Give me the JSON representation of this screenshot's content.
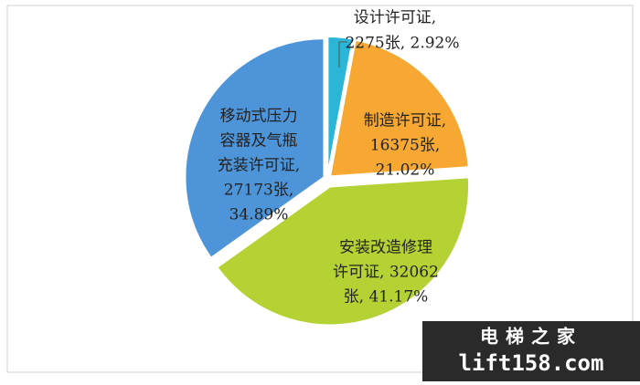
{
  "chart_data": {
    "type": "pie",
    "categories": [
      "设计许可证",
      "制造许可证",
      "安装改造修理许可证",
      "移动式压力容器及气瓶充装许可证"
    ],
    "values": [
      2.92,
      21.02,
      41.17,
      34.89
    ],
    "colors": [
      "#2bb5d6",
      "#f6a832",
      "#b4d234",
      "#4d94d8"
    ],
    "labels": [
      [
        "设计许可证,",
        "2275张, 2.92%"
      ],
      [
        "制造许可证,",
        "16375张,",
        "21.02%"
      ],
      [
        "安装改造修理",
        "许可证, 32062",
        "张, 41.17%"
      ],
      [
        "移动式压力",
        "容器及气瓶",
        "充装许可证,",
        "27173张,",
        "34.89%"
      ]
    ]
  },
  "watermark": [
    "电梯之家",
    "lift158.com"
  ]
}
